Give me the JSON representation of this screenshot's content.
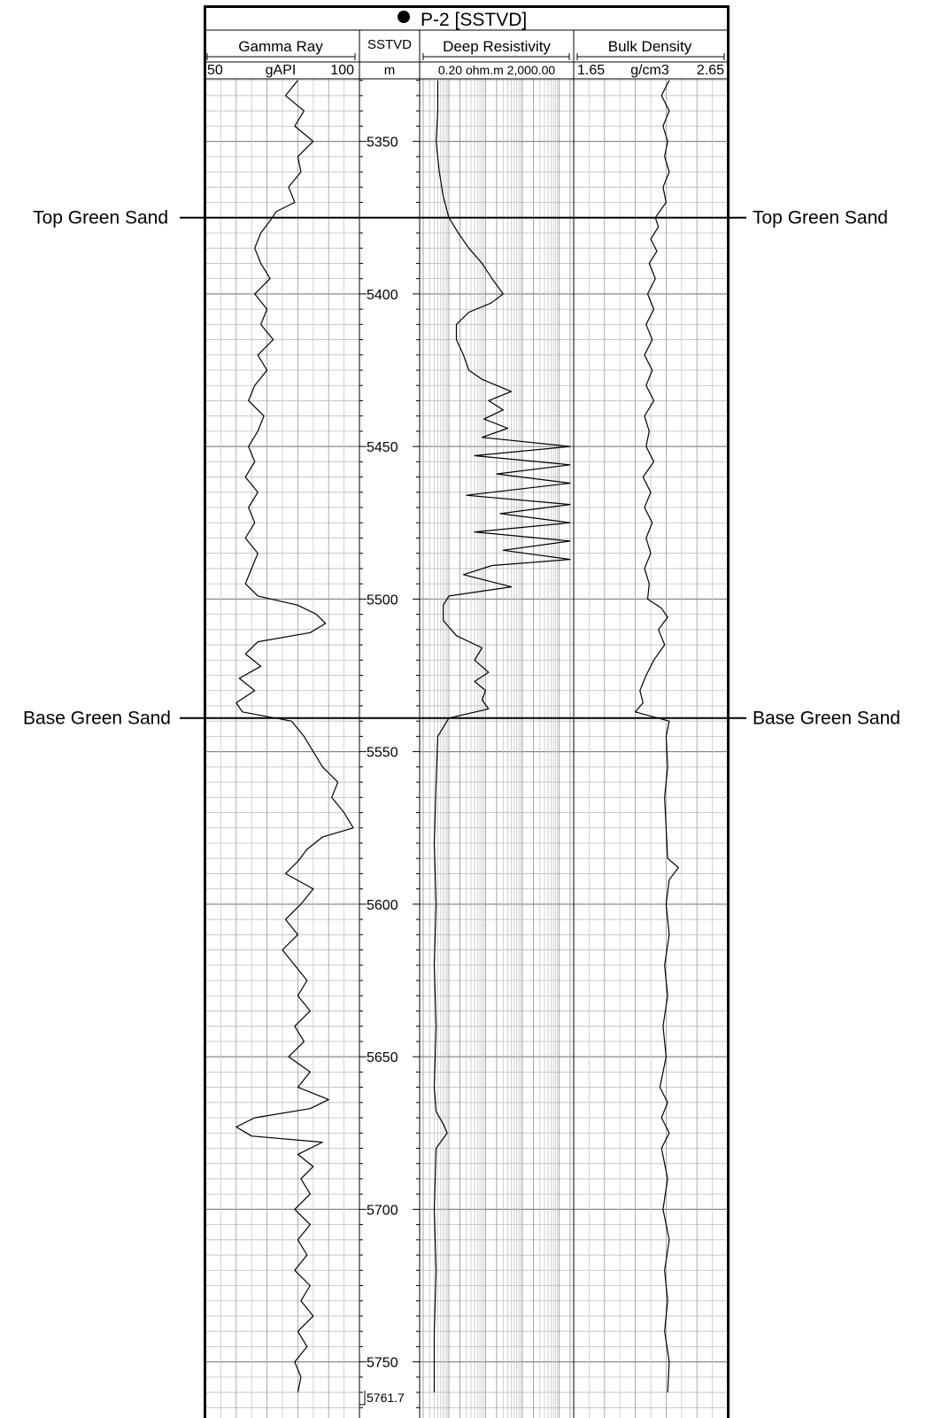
{
  "well": {
    "title": "P-2 [SSTVD]"
  },
  "tracks": {
    "gamma_ray": {
      "name": "Gamma Ray",
      "unit": "gAPI",
      "min": "50",
      "max": "100"
    },
    "depth": {
      "name": "SSTVD",
      "unit": "m"
    },
    "resistivity": {
      "name": "Deep Resistivity",
      "scale_text": "0.20 ohm.m 2,000.00"
    },
    "bulk_density": {
      "name": "Bulk Density",
      "unit": "g/cm3",
      "min": "1.65",
      "max": "2.65"
    }
  },
  "markers": {
    "top": "Top Green Sand",
    "base": "Base Green Sand"
  },
  "chart_data": {
    "type": "line",
    "title": "P-2 [SSTVD]",
    "ylabel": "SSTVD",
    "yunit": "m",
    "ylim": [
      5329,
      5765
    ],
    "y_reversed": true,
    "depth_end_label": "5761.7",
    "depth_ticks": [
      5350,
      5400,
      5450,
      5500,
      5550,
      5600,
      5650,
      5700,
      5750
    ],
    "markers": [
      {
        "name": "Top Green Sand",
        "depth": 5375
      },
      {
        "name": "Base Green Sand",
        "depth": 5539
      }
    ],
    "series": [
      {
        "name": "Gamma Ray",
        "unit": "gAPI",
        "xlim": [
          50,
          100
        ],
        "scale": "linear",
        "depth": [
          5330,
          5335,
          5340,
          5345,
          5350,
          5355,
          5360,
          5365,
          5370,
          5373,
          5376,
          5380,
          5385,
          5390,
          5395,
          5400,
          5405,
          5410,
          5415,
          5420,
          5425,
          5430,
          5435,
          5440,
          5445,
          5450,
          5455,
          5460,
          5465,
          5470,
          5475,
          5480,
          5485,
          5490,
          5495,
          5499,
          5502,
          5505,
          5508,
          5511,
          5514,
          5518,
          5522,
          5526,
          5530,
          5534,
          5537,
          5540,
          5545,
          5550,
          5555,
          5560,
          5565,
          5570,
          5575,
          5578,
          5582,
          5586,
          5590,
          5595,
          5600,
          5605,
          5610,
          5615,
          5620,
          5625,
          5630,
          5635,
          5640,
          5645,
          5650,
          5655,
          5660,
          5664,
          5667,
          5670,
          5673,
          5676,
          5678,
          5682,
          5686,
          5690,
          5695,
          5700,
          5705,
          5710,
          5715,
          5720,
          5725,
          5730,
          5735,
          5740,
          5745,
          5750,
          5755,
          5760
        ],
        "values": [
          80,
          76,
          82,
          79,
          85,
          80,
          81,
          77,
          79,
          73,
          71,
          68,
          66,
          68,
          71,
          66,
          70,
          68,
          72,
          67,
          70,
          66,
          64,
          69,
          67,
          64,
          66,
          63,
          67,
          64,
          66,
          63,
          67,
          65,
          63,
          67,
          80,
          86,
          89,
          84,
          67,
          63,
          68,
          61,
          66,
          60,
          62,
          78,
          82,
          85,
          88,
          93,
          91,
          95,
          98,
          88,
          83,
          80,
          76,
          85,
          81,
          76,
          80,
          75,
          79,
          83,
          80,
          84,
          79,
          82,
          77,
          84,
          80,
          90,
          84,
          66,
          60,
          65,
          88,
          80,
          85,
          81,
          84,
          79,
          84,
          80,
          83,
          79,
          84,
          81,
          85,
          80,
          83,
          79,
          81,
          80
        ]
      },
      {
        "name": "Deep Resistivity",
        "unit": "ohm.m",
        "xlim": [
          0.2,
          2000
        ],
        "scale": "log",
        "depth": [
          5330,
          5340,
          5350,
          5360,
          5368,
          5375,
          5380,
          5385,
          5390,
          5395,
          5400,
          5403,
          5406,
          5410,
          5415,
          5420,
          5425,
          5428,
          5432,
          5435,
          5438,
          5441,
          5444,
          5447,
          5450,
          5453,
          5456,
          5459,
          5462,
          5466,
          5469,
          5472,
          5475,
          5478,
          5481,
          5484,
          5487,
          5489,
          5492,
          5496,
          5499,
          5502,
          5507,
          5512,
          5516,
          5520,
          5524,
          5527,
          5530,
          5533,
          5536,
          5539,
          5545,
          5560,
          5580,
          5600,
          5620,
          5640,
          5660,
          5668,
          5672,
          5675,
          5680,
          5700,
          5720,
          5740,
          5760
        ],
        "values": [
          0.5,
          0.5,
          0.45,
          0.55,
          0.7,
          1.0,
          1.8,
          3.5,
          8,
          15,
          30,
          14,
          3.5,
          1.6,
          1.6,
          2.5,
          3.5,
          8,
          50,
          12,
          30,
          9,
          40,
          8,
          2000,
          5,
          2000,
          20,
          2000,
          3,
          2000,
          25,
          2000,
          5,
          2000,
          30,
          2000,
          15,
          2.5,
          50,
          1.0,
          0.7,
          0.7,
          1.6,
          8,
          5,
          12,
          5,
          10,
          8,
          12,
          1.0,
          0.5,
          0.45,
          0.4,
          0.45,
          0.4,
          0.45,
          0.4,
          0.45,
          0.7,
          0.9,
          0.45,
          0.4,
          0.45,
          0.4,
          0.4
        ]
      },
      {
        "name": "Bulk Density",
        "unit": "g/cm3",
        "xlim": [
          1.65,
          2.65
        ],
        "scale": "linear",
        "depth": [
          5330,
          5335,
          5340,
          5345,
          5350,
          5355,
          5360,
          5365,
          5370,
          5375,
          5378,
          5382,
          5386,
          5390,
          5395,
          5400,
          5405,
          5410,
          5415,
          5420,
          5425,
          5430,
          5435,
          5440,
          5445,
          5450,
          5455,
          5460,
          5465,
          5470,
          5475,
          5480,
          5485,
          5490,
          5495,
          5500,
          5503,
          5506,
          5510,
          5515,
          5520,
          5525,
          5530,
          5534,
          5537,
          5540,
          5545,
          5555,
          5565,
          5575,
          5585,
          5588,
          5592,
          5600,
          5610,
          5620,
          5630,
          5640,
          5650,
          5660,
          5665,
          5670,
          5675,
          5680,
          5690,
          5700,
          5710,
          5720,
          5730,
          5740,
          5750,
          5760
        ],
        "values": [
          2.27,
          2.22,
          2.27,
          2.23,
          2.26,
          2.24,
          2.27,
          2.23,
          2.25,
          2.18,
          2.2,
          2.15,
          2.19,
          2.14,
          2.18,
          2.13,
          2.17,
          2.12,
          2.16,
          2.11,
          2.16,
          2.12,
          2.17,
          2.11,
          2.14,
          2.12,
          2.17,
          2.1,
          2.15,
          2.11,
          2.16,
          2.12,
          2.15,
          2.11,
          2.14,
          2.13,
          2.22,
          2.26,
          2.2,
          2.24,
          2.17,
          2.12,
          2.08,
          2.1,
          2.05,
          2.27,
          2.25,
          2.26,
          2.24,
          2.25,
          2.26,
          2.33,
          2.27,
          2.25,
          2.27,
          2.24,
          2.26,
          2.23,
          2.25,
          2.21,
          2.26,
          2.22,
          2.27,
          2.22,
          2.26,
          2.23,
          2.27,
          2.24,
          2.26,
          2.24,
          2.27,
          2.26
        ]
      }
    ]
  }
}
